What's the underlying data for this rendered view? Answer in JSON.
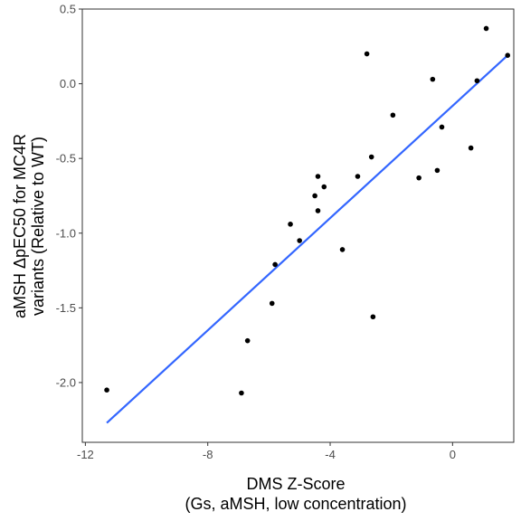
{
  "chart_data": {
    "type": "scatter",
    "title": "",
    "xlabel": [
      "DMS Z-Score",
      "(Gs, aMSH, low concentration)"
    ],
    "ylabel": [
      "aMSH ΔpEC50 for MC4R",
      "variants (Relative to WT)"
    ],
    "xlim": [
      -12.1,
      2.0
    ],
    "ylim": [
      -2.4,
      0.5
    ],
    "xticks": [
      -12,
      -8,
      -4,
      0
    ],
    "xtick_labels": [
      "-12",
      "-8",
      "-4",
      "0"
    ],
    "yticks": [
      -2.0,
      -1.5,
      -1.0,
      -0.5,
      0.0,
      0.5
    ],
    "ytick_labels": [
      "-2.0",
      "-1.5",
      "-1.0",
      "-0.5",
      "0.0",
      "0.5"
    ],
    "grid": false,
    "points": [
      {
        "x": -11.3,
        "y": -2.05
      },
      {
        "x": -6.9,
        "y": -2.07
      },
      {
        "x": -6.7,
        "y": -1.72
      },
      {
        "x": -5.9,
        "y": -1.47
      },
      {
        "x": -5.8,
        "y": -1.21
      },
      {
        "x": -5.3,
        "y": -0.94
      },
      {
        "x": -5.0,
        "y": -1.05
      },
      {
        "x": -4.5,
        "y": -0.75
      },
      {
        "x": -4.4,
        "y": -0.62
      },
      {
        "x": -4.4,
        "y": -0.85
      },
      {
        "x": -4.2,
        "y": -0.69
      },
      {
        "x": -3.6,
        "y": -1.11
      },
      {
        "x": -3.1,
        "y": -0.62
      },
      {
        "x": -2.8,
        "y": 0.2
      },
      {
        "x": -2.65,
        "y": -0.49
      },
      {
        "x": -2.6,
        "y": -1.56
      },
      {
        "x": -1.95,
        "y": -0.21
      },
      {
        "x": -1.1,
        "y": -0.63
      },
      {
        "x": -0.65,
        "y": 0.03
      },
      {
        "x": -0.5,
        "y": -0.58
      },
      {
        "x": -0.35,
        "y": -0.29
      },
      {
        "x": 0.6,
        "y": -0.43
      },
      {
        "x": 0.8,
        "y": 0.02
      },
      {
        "x": 1.1,
        "y": 0.37
      },
      {
        "x": 1.8,
        "y": 0.19
      }
    ],
    "fit_line": {
      "x": [
        -11.3,
        1.8
      ],
      "y": [
        -2.27,
        0.19
      ],
      "color": "#3366FF"
    },
    "point_color": "#000000",
    "panel_border_color": "#333333"
  }
}
